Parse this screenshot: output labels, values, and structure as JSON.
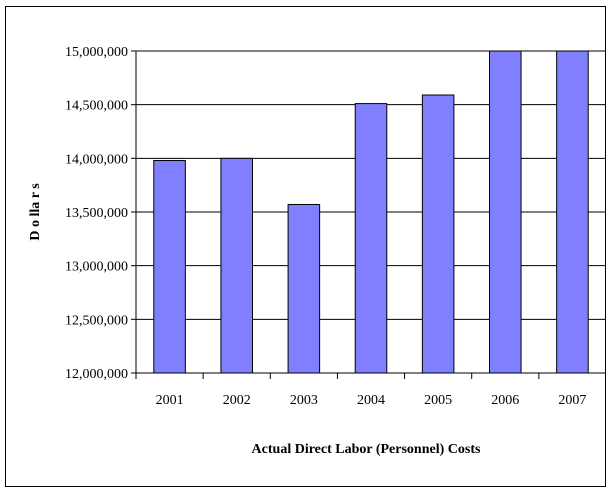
{
  "chart_data": {
    "type": "bar",
    "categories": [
      "2001",
      "2002",
      "2003",
      "2004",
      "2005",
      "2006",
      "2007"
    ],
    "values": [
      13980000,
      14000000,
      13570000,
      14510000,
      14590000,
      15000000,
      15000000
    ],
    "y_ticks": [
      "12,000,000",
      "12,500,000",
      "13,000,000",
      "13,500,000",
      "14,000,000",
      "14,500,000",
      "15,000,000"
    ],
    "y_tick_values": [
      12000000,
      12500000,
      13000000,
      13500000,
      14000000,
      14500000,
      15000000
    ],
    "ylim": [
      12000000,
      15000000
    ],
    "xlabel": "Actual Direct Labor (Personnel) Costs",
    "ylabel": "D o lla r s",
    "grid": true,
    "legend": "none",
    "bar_color": "#8080FF",
    "bar_stroke": "#000000"
  }
}
